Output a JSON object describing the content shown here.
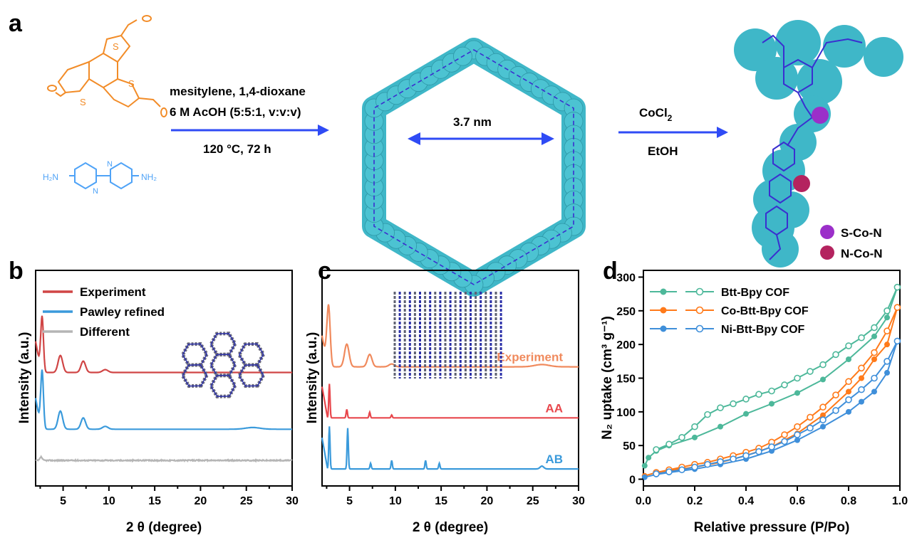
{
  "panel_a": {
    "letter": "a",
    "reagent_line1": "mesitylene, 1,4-dioxane",
    "reagent_line2": "6 M AcOH (5:5:1, v:v:v)",
    "conditions": "120 °C, 72 h",
    "pore_size": "3.7 nm",
    "metal_reagent": "CoCl",
    "metal_reagent_sub": "2",
    "solvent": "EtOH",
    "monomer_amine_left": "H₂N",
    "monomer_amine_right": "NH₂",
    "atom_S": "S",
    "atom_N": "N",
    "legend": [
      "S-Co-N",
      "N-Co-N"
    ],
    "colors": {
      "monomer": "#F28C28",
      "diamine": "#4FA3F7",
      "arrow": "#2F4BF5",
      "cof_sphere": "#3FB7C8",
      "framework": "#3A2FD0",
      "s_co_n": "#9B2FC9",
      "n_co_n": "#B4235F"
    }
  },
  "chart_data": [
    {
      "panel": "b",
      "type": "line",
      "xlabel": "2 θ (degree)",
      "ylabel": "Intensity (a.u.)",
      "xlim": [
        2,
        30
      ],
      "xticks": [
        5,
        10,
        15,
        20,
        25,
        30
      ],
      "legend": "top-left",
      "series": [
        {
          "name": "Experiment",
          "color": "#D04545",
          "offset": 2.0,
          "peaks": [
            [
              2.7,
              1.0,
              0.15
            ],
            [
              4.7,
              0.3,
              0.25
            ],
            [
              7.2,
              0.2,
              0.25
            ],
            [
              9.6,
              0.05,
              0.3
            ]
          ]
        },
        {
          "name": "Pawley refined",
          "color": "#3A9ADB",
          "offset": 1.0,
          "peaks": [
            [
              2.7,
              1.05,
              0.15
            ],
            [
              4.7,
              0.32,
              0.25
            ],
            [
              7.2,
              0.2,
              0.25
            ],
            [
              9.6,
              0.05,
              0.3
            ],
            [
              25.7,
              0.03,
              0.8
            ]
          ]
        },
        {
          "name": "Different",
          "color": "#B5B5B5",
          "offset": 0.45,
          "peaks": [
            [
              2.6,
              0.06,
              0.12
            ]
          ]
        }
      ]
    },
    {
      "panel": "c",
      "type": "line",
      "xlabel": "2 θ (degree)",
      "ylabel": "Intensity (a.u.)",
      "xlim": [
        2,
        30
      ],
      "xticks": [
        5,
        10,
        15,
        20,
        25,
        30
      ],
      "series": [
        {
          "name": "Experiment",
          "color": "#F08A5D",
          "offset": 2.1,
          "peaks": [
            [
              2.7,
              1.1,
              0.18
            ],
            [
              4.7,
              0.4,
              0.25
            ],
            [
              7.2,
              0.22,
              0.25
            ],
            [
              9.6,
              0.05,
              0.3
            ],
            [
              26,
              0.04,
              0.8
            ]
          ]
        },
        {
          "name": "AA",
          "color": "#E8474C",
          "offset": 1.2,
          "peaks": [
            [
              2.8,
              0.6,
              0.07
            ],
            [
              4.7,
              0.15,
              0.07
            ],
            [
              7.2,
              0.1,
              0.07
            ],
            [
              9.6,
              0.05,
              0.07
            ]
          ]
        },
        {
          "name": "AB",
          "color": "#3A9ADB",
          "offset": 0.3,
          "peaks": [
            [
              2.8,
              0.75,
              0.07
            ],
            [
              4.8,
              0.72,
              0.07
            ],
            [
              7.3,
              0.1,
              0.07
            ],
            [
              9.6,
              0.15,
              0.07
            ],
            [
              13.3,
              0.15,
              0.07
            ],
            [
              14.8,
              0.1,
              0.07
            ],
            [
              26,
              0.05,
              0.2
            ]
          ]
        }
      ]
    },
    {
      "panel": "d",
      "type": "scatter",
      "xlabel": "Relative pressure (P/Po)",
      "ylabel": "N₂ uptake (cm³ g⁻¹)",
      "xlim": [
        0,
        1
      ],
      "ylim": [
        -10,
        310
      ],
      "xticks": [
        0.0,
        0.2,
        0.4,
        0.6,
        0.8,
        1.0
      ],
      "yticks": [
        0,
        50,
        100,
        150,
        200,
        250,
        300
      ],
      "legend": "top-left",
      "series": [
        {
          "name": "Btt-Bpy COF",
          "color": "#4DB89A",
          "adsorption": [
            [
              0.005,
              20
            ],
            [
              0.02,
              32
            ],
            [
              0.05,
              42
            ],
            [
              0.1,
              50
            ],
            [
              0.2,
              62
            ],
            [
              0.3,
              78
            ],
            [
              0.4,
              97
            ],
            [
              0.5,
              112
            ],
            [
              0.6,
              128
            ],
            [
              0.7,
              148
            ],
            [
              0.8,
              178
            ],
            [
              0.9,
              212
            ],
            [
              0.95,
              240
            ],
            [
              0.99,
              285
            ]
          ],
          "desorption": [
            [
              0.99,
              285
            ],
            [
              0.95,
              250
            ],
            [
              0.9,
              225
            ],
            [
              0.85,
              210
            ],
            [
              0.8,
              198
            ],
            [
              0.75,
              185
            ],
            [
              0.7,
              170
            ],
            [
              0.65,
              160
            ],
            [
              0.6,
              150
            ],
            [
              0.55,
              140
            ],
            [
              0.5,
              131
            ],
            [
              0.45,
              126
            ],
            [
              0.4,
              119
            ],
            [
              0.35,
              112
            ],
            [
              0.3,
              106
            ],
            [
              0.25,
              96
            ],
            [
              0.2,
              78
            ],
            [
              0.15,
              62
            ],
            [
              0.1,
              52
            ],
            [
              0.05,
              44
            ]
          ]
        },
        {
          "name": "Co-Btt-Bpy COF",
          "color": "#FF7A1A",
          "adsorption": [
            [
              0.005,
              5
            ],
            [
              0.05,
              10
            ],
            [
              0.1,
              13
            ],
            [
              0.2,
              18
            ],
            [
              0.3,
              25
            ],
            [
              0.4,
              35
            ],
            [
              0.5,
              48
            ],
            [
              0.6,
              68
            ],
            [
              0.7,
              95
            ],
            [
              0.8,
              130
            ],
            [
              0.85,
              150
            ],
            [
              0.9,
              178
            ],
            [
              0.95,
              200
            ],
            [
              0.99,
              255
            ]
          ],
          "desorption": [
            [
              0.99,
              255
            ],
            [
              0.95,
              220
            ],
            [
              0.9,
              188
            ],
            [
              0.85,
              165
            ],
            [
              0.8,
              145
            ],
            [
              0.75,
              125
            ],
            [
              0.7,
              107
            ],
            [
              0.65,
              92
            ],
            [
              0.6,
              78
            ],
            [
              0.55,
              66
            ],
            [
              0.5,
              55
            ],
            [
              0.45,
              46
            ],
            [
              0.4,
              40
            ],
            [
              0.35,
              35
            ],
            [
              0.3,
              30
            ],
            [
              0.25,
              25
            ],
            [
              0.2,
              22
            ],
            [
              0.15,
              18
            ],
            [
              0.1,
              14
            ],
            [
              0.05,
              10
            ]
          ]
        },
        {
          "name": "Ni-Btt-Bpy COF",
          "color": "#3F8FDA",
          "adsorption": [
            [
              0.005,
              3
            ],
            [
              0.05,
              7
            ],
            [
              0.1,
              10
            ],
            [
              0.2,
              15
            ],
            [
              0.3,
              22
            ],
            [
              0.4,
              30
            ],
            [
              0.5,
              42
            ],
            [
              0.6,
              58
            ],
            [
              0.7,
              78
            ],
            [
              0.8,
              100
            ],
            [
              0.85,
              115
            ],
            [
              0.9,
              130
            ],
            [
              0.95,
              158
            ],
            [
              0.99,
              205
            ]
          ],
          "desorption": [
            [
              0.99,
              205
            ],
            [
              0.95,
              175
            ],
            [
              0.9,
              150
            ],
            [
              0.85,
              133
            ],
            [
              0.8,
              118
            ],
            [
              0.75,
              102
            ],
            [
              0.7,
              88
            ],
            [
              0.65,
              76
            ],
            [
              0.6,
              66
            ],
            [
              0.55,
              56
            ],
            [
              0.5,
              48
            ],
            [
              0.45,
              41
            ],
            [
              0.4,
              35
            ],
            [
              0.35,
              30
            ],
            [
              0.3,
              26
            ],
            [
              0.25,
              22
            ],
            [
              0.2,
              18
            ],
            [
              0.15,
              14
            ],
            [
              0.1,
              11
            ],
            [
              0.05,
              8
            ]
          ]
        }
      ]
    }
  ],
  "panel_b": {
    "letter": "b"
  },
  "panel_c": {
    "letter": "c"
  },
  "panel_d": {
    "letter": "d"
  }
}
